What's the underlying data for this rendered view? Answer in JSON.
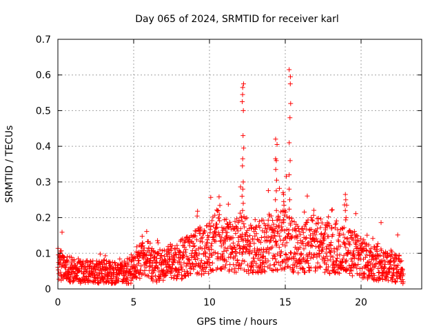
{
  "chart_data": {
    "type": "scatter",
    "title": "Day 065 of 2024, SRMTID for receiver karl",
    "xlabel": "GPS time / hours",
    "ylabel": "SRMTID / TECUs",
    "xlim": [
      0,
      24
    ],
    "ylim": [
      0,
      0.7
    ],
    "xticks": [
      0,
      5,
      10,
      15,
      20
    ],
    "yticks": [
      0,
      0.1,
      0.2,
      0.3,
      0.4,
      0.5,
      0.6,
      0.7
    ],
    "xtick_labels": [
      "0",
      "5",
      "10",
      "15",
      "20"
    ],
    "ytick_labels": [
      "0",
      "0.1",
      "0.2",
      "0.3",
      "0.4",
      "0.5",
      "0.6",
      "0.7"
    ],
    "grid": true,
    "marker": "plus",
    "marker_color": "#ff0000",
    "series_profile": {
      "description_note": "approximate median level vs time (hours), points scattered around it",
      "x": [
        0,
        0.5,
        1,
        2,
        3,
        4,
        4.5,
        5,
        5.5,
        6,
        6.5,
        7,
        8,
        9,
        10,
        10.5,
        11,
        11.5,
        12,
        12.5,
        13,
        13.5,
        14,
        14.5,
        15,
        15.5,
        16,
        16.5,
        17,
        17.5,
        18,
        18.5,
        19,
        19.5,
        20,
        21,
        22,
        22.8
      ],
      "y": [
        0.07,
        0.055,
        0.05,
        0.045,
        0.05,
        0.04,
        0.045,
        0.06,
        0.09,
        0.08,
        0.06,
        0.07,
        0.08,
        0.1,
        0.12,
        0.14,
        0.13,
        0.11,
        0.14,
        0.12,
        0.11,
        0.12,
        0.13,
        0.13,
        0.14,
        0.12,
        0.1,
        0.12,
        0.13,
        0.12,
        0.11,
        0.12,
        0.1,
        0.1,
        0.085,
        0.075,
        0.065,
        0.05
      ]
    },
    "spikes": [
      {
        "x": 12.2,
        "values": [
          0.575,
          0.565,
          0.545,
          0.525,
          0.5,
          0.43,
          0.395,
          0.365,
          0.345,
          0.3,
          0.28,
          0.26,
          0.24,
          0.22
        ]
      },
      {
        "x": 14.4,
        "values": [
          0.42,
          0.405,
          0.365,
          0.36,
          0.335,
          0.305,
          0.275,
          0.25,
          0.22
        ]
      },
      {
        "x": 14.9,
        "values": [
          0.27,
          0.265,
          0.245,
          0.235,
          0.22
        ]
      },
      {
        "x": 15.3,
        "values": [
          0.615,
          0.595,
          0.575,
          0.52,
          0.48,
          0.41,
          0.36,
          0.32,
          0.28,
          0.25
        ]
      },
      {
        "x": 19.0,
        "values": [
          0.265,
          0.25,
          0.235,
          0.22,
          0.2
        ]
      }
    ]
  }
}
